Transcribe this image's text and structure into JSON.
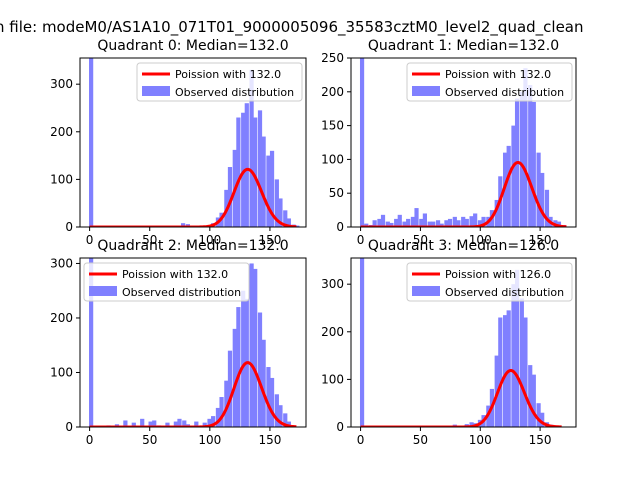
{
  "suptitle": "n file: modeM0/AS1A10_071T01_9000005096_35583cztM0_level2_quad_clean",
  "colors": {
    "line": "#ff0000",
    "bar": "#8080ff",
    "axis": "#000000"
  },
  "chart_data": [
    {
      "type": "bar",
      "quadrant": 0,
      "title": "Quadrant 0: Median=132.0",
      "median": 132.0,
      "xlim": [
        -8,
        180
      ],
      "ylim": [
        0,
        355
      ],
      "xticks": [
        0,
        50,
        100,
        150
      ],
      "xtick_labels": [
        "0",
        "50",
        "100",
        "150"
      ],
      "yticks": [
        0,
        100,
        200,
        300
      ],
      "ytick_labels": [
        "0",
        "100",
        "200",
        "300"
      ],
      "legend": {
        "position": "top-right",
        "line_label": "Poission with 132.0",
        "bar_label": "Observed distribution"
      },
      "series": [
        {
          "name": "Observed distribution",
          "kind": "histogram",
          "bin_width": 3.5,
          "bins": [
            [
              -0.5,
              355
            ],
            [
              70,
              1
            ],
            [
              76,
              8
            ],
            [
              80,
              6
            ],
            [
              84,
              3
            ],
            [
              90,
              2
            ],
            [
              94,
              3
            ],
            [
              98,
              4
            ],
            [
              101,
              8
            ],
            [
              105,
              20
            ],
            [
              108,
              30
            ],
            [
              112,
              78
            ],
            [
              115,
              126
            ],
            [
              119,
              162
            ],
            [
              122,
              230
            ],
            [
              126,
              240
            ],
            [
              129,
              260
            ],
            [
              133,
              330
            ],
            [
              136,
              230
            ],
            [
              140,
              245
            ],
            [
              143,
              190
            ],
            [
              147,
              150
            ],
            [
              150,
              160
            ],
            [
              154,
              100
            ],
            [
              157,
              60
            ],
            [
              161,
              35
            ],
            [
              164,
              18
            ],
            [
              168,
              5
            ],
            [
              171,
              3
            ],
            [
              175,
              1
            ]
          ]
        },
        {
          "name": "Poission with 132.0",
          "kind": "poisson-curve",
          "lambda": 132.0,
          "scale": 3490,
          "x_range": [
            0,
            172
          ]
        }
      ]
    },
    {
      "type": "bar",
      "quadrant": 1,
      "title": "Quadrant 1: Median=132.0",
      "median": 132.0,
      "xlim": [
        -8,
        180
      ],
      "ylim": [
        0,
        250
      ],
      "xticks": [
        0,
        50,
        100,
        150
      ],
      "xtick_labels": [
        "0",
        "50",
        "100",
        "150"
      ],
      "yticks": [
        0,
        50,
        100,
        150,
        200,
        250
      ],
      "ytick_labels": [
        "0",
        "50",
        "100",
        "150",
        "200",
        "250"
      ],
      "legend": {
        "position": "top-right",
        "line_label": "Poission with 132.0",
        "bar_label": "Observed distribution"
      },
      "series": [
        {
          "name": "Observed distribution",
          "kind": "histogram",
          "bin_width": 3.5,
          "bins": [
            [
              -0.5,
              250
            ],
            [
              3,
              5
            ],
            [
              7,
              3
            ],
            [
              10,
              10
            ],
            [
              14,
              12
            ],
            [
              17,
              18
            ],
            [
              21,
              8
            ],
            [
              24,
              6
            ],
            [
              28,
              12
            ],
            [
              31,
              18
            ],
            [
              35,
              8
            ],
            [
              38,
              12
            ],
            [
              42,
              15
            ],
            [
              45,
              28
            ],
            [
              49,
              12
            ],
            [
              52,
              20
            ],
            [
              56,
              8
            ],
            [
              59,
              8
            ],
            [
              63,
              10
            ],
            [
              66,
              5
            ],
            [
              70,
              10
            ],
            [
              73,
              12
            ],
            [
              77,
              15
            ],
            [
              80,
              10
            ],
            [
              84,
              15
            ],
            [
              87,
              12
            ],
            [
              91,
              16
            ],
            [
              94,
              20
            ],
            [
              98,
              10
            ],
            [
              101,
              15
            ],
            [
              105,
              15
            ],
            [
              108,
              25
            ],
            [
              112,
              40
            ],
            [
              115,
              75
            ],
            [
              119,
              110
            ],
            [
              122,
              120
            ],
            [
              126,
              150
            ],
            [
              129,
              190
            ],
            [
              133,
              200
            ],
            [
              136,
              235
            ],
            [
              140,
              210
            ],
            [
              143,
              185
            ],
            [
              147,
              110
            ],
            [
              150,
              80
            ],
            [
              154,
              55
            ],
            [
              157,
              15
            ],
            [
              161,
              10
            ],
            [
              164,
              8
            ],
            [
              168,
              3
            ]
          ]
        },
        {
          "name": "Poission with 132.0",
          "kind": "poisson-curve",
          "lambda": 132.0,
          "scale": 2750,
          "x_range": [
            0,
            172
          ]
        }
      ]
    },
    {
      "type": "bar",
      "quadrant": 2,
      "title": "Quadrant 2: Median=132.0",
      "median": 132.0,
      "xlim": [
        -8,
        180
      ],
      "ylim": [
        0,
        310
      ],
      "xticks": [
        0,
        50,
        100,
        150
      ],
      "xtick_labels": [
        "0",
        "50",
        "100",
        "150"
      ],
      "yticks": [
        0,
        100,
        200,
        300
      ],
      "ytick_labels": [
        "0",
        "100",
        "200",
        "300"
      ],
      "legend": {
        "position": "top-left",
        "line_label": "Poission with 132.0",
        "bar_label": "Observed distribution"
      },
      "series": [
        {
          "name": "Observed distribution",
          "kind": "histogram",
          "bin_width": 3.5,
          "bins": [
            [
              -0.5,
              310
            ],
            [
              14,
              3
            ],
            [
              21,
              5
            ],
            [
              28,
              12
            ],
            [
              35,
              8
            ],
            [
              42,
              15
            ],
            [
              49,
              10
            ],
            [
              52,
              12
            ],
            [
              56,
              3
            ],
            [
              63,
              8
            ],
            [
              70,
              10
            ],
            [
              73,
              15
            ],
            [
              77,
              12
            ],
            [
              80,
              5
            ],
            [
              87,
              10
            ],
            [
              94,
              8
            ],
            [
              98,
              15
            ],
            [
              101,
              20
            ],
            [
              105,
              35
            ],
            [
              108,
              55
            ],
            [
              112,
              85
            ],
            [
              115,
              140
            ],
            [
              119,
              180
            ],
            [
              122,
              220
            ],
            [
              126,
              250
            ],
            [
              129,
              235
            ],
            [
              133,
              300
            ],
            [
              136,
              290
            ],
            [
              140,
              210
            ],
            [
              143,
              160
            ],
            [
              147,
              110
            ],
            [
              150,
              90
            ],
            [
              154,
              60
            ],
            [
              157,
              40
            ],
            [
              161,
              25
            ],
            [
              164,
              10
            ],
            [
              168,
              3
            ]
          ]
        },
        {
          "name": "Poission with 132.0",
          "kind": "poisson-curve",
          "lambda": 132.0,
          "scale": 3400,
          "x_range": [
            0,
            172
          ]
        }
      ]
    },
    {
      "type": "bar",
      "quadrant": 3,
      "title": "Quadrant 3: Median=126.0",
      "median": 126.0,
      "xlim": [
        -8,
        180
      ],
      "ylim": [
        0,
        355
      ],
      "xticks": [
        0,
        50,
        100,
        150
      ],
      "xtick_labels": [
        "0",
        "50",
        "100",
        "150"
      ],
      "yticks": [
        0,
        100,
        200,
        300
      ],
      "ytick_labels": [
        "0",
        "100",
        "200",
        "300"
      ],
      "legend": {
        "position": "top-right",
        "line_label": "Poission with 126.0",
        "bar_label": "Observed distribution"
      },
      "series": [
        {
          "name": "Observed distribution",
          "kind": "histogram",
          "bin_width": 3.5,
          "bins": [
            [
              -0.5,
              355
            ],
            [
              77,
              5
            ],
            [
              80,
              3
            ],
            [
              87,
              6
            ],
            [
              91,
              10
            ],
            [
              94,
              8
            ],
            [
              98,
              15
            ],
            [
              101,
              25
            ],
            [
              105,
              45
            ],
            [
              108,
              80
            ],
            [
              112,
              150
            ],
            [
              115,
              230
            ],
            [
              119,
              235
            ],
            [
              122,
              245
            ],
            [
              126,
              300
            ],
            [
              129,
              330
            ],
            [
              133,
              270
            ],
            [
              136,
              230
            ],
            [
              140,
              130
            ],
            [
              143,
              110
            ],
            [
              147,
              50
            ],
            [
              150,
              30
            ],
            [
              154,
              10
            ],
            [
              157,
              5
            ],
            [
              161,
              3
            ]
          ]
        },
        {
          "name": "Poission with 126.0",
          "kind": "poisson-curve",
          "lambda": 126.0,
          "scale": 3340,
          "x_range": [
            0,
            168
          ]
        }
      ]
    }
  ]
}
